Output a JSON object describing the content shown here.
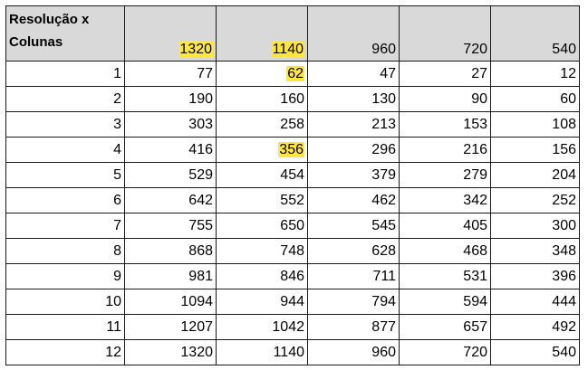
{
  "table": {
    "corner_line1": "Resolução x",
    "corner_line2": "Colunas",
    "columns": [
      "1320",
      "1140",
      "960",
      "720",
      "540"
    ],
    "highlighted_headers": [
      "1320",
      "1140"
    ],
    "highlight_color": "#ffe740",
    "header_bg": "#d9d9d9",
    "rows": [
      {
        "label": "1",
        "values": [
          "77",
          "62",
          "47",
          "27",
          "12"
        ]
      },
      {
        "label": "2",
        "values": [
          "190",
          "160",
          "130",
          "90",
          "60"
        ]
      },
      {
        "label": "3",
        "values": [
          "303",
          "258",
          "213",
          "153",
          "108"
        ]
      },
      {
        "label": "4",
        "values": [
          "416",
          "356",
          "296",
          "216",
          "156"
        ]
      },
      {
        "label": "5",
        "values": [
          "529",
          "454",
          "379",
          "279",
          "204"
        ]
      },
      {
        "label": "6",
        "values": [
          "642",
          "552",
          "462",
          "342",
          "252"
        ]
      },
      {
        "label": "7",
        "values": [
          "755",
          "650",
          "545",
          "405",
          "300"
        ]
      },
      {
        "label": "8",
        "values": [
          "868",
          "748",
          "628",
          "468",
          "348"
        ]
      },
      {
        "label": "9",
        "values": [
          "981",
          "846",
          "711",
          "531",
          "396"
        ]
      },
      {
        "label": "10",
        "values": [
          "1094",
          "944",
          "794",
          "594",
          "444"
        ]
      },
      {
        "label": "11",
        "values": [
          "1207",
          "1042",
          "877",
          "657",
          "492"
        ]
      },
      {
        "label": "12",
        "values": [
          "1320",
          "1140",
          "960",
          "720",
          "540"
        ]
      }
    ],
    "highlighted_cells": [
      {
        "row": 0,
        "col": 1
      },
      {
        "row": 3,
        "col": 1
      }
    ]
  }
}
